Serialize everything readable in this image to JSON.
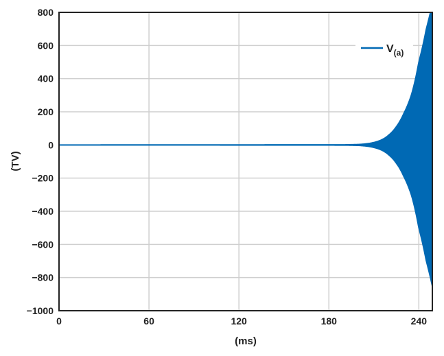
{
  "chart_data": {
    "type": "line",
    "title": "",
    "xlabel": "(ms)",
    "ylabel": "(TV)",
    "xlim": [
      0,
      249
    ],
    "ylim": [
      -1000,
      800
    ],
    "xticks": [
      0,
      60,
      120,
      180,
      240
    ],
    "yticks": [
      800,
      600,
      400,
      200,
      0,
      -200,
      -400,
      -600,
      -800,
      -1000
    ],
    "xtick_labels": [
      "0",
      "60",
      "120",
      "180",
      "240"
    ],
    "ytick_labels": [
      "800",
      "600",
      "400",
      "200",
      "0",
      "−200",
      "−400",
      "−600",
      "−800",
      "−1000"
    ],
    "grid": true,
    "legend_placement": "top-right",
    "series": [
      {
        "name": "V(a)",
        "legend_main": "V",
        "legend_sub": "(a)",
        "color": "#0069b4",
        "style": "oscillation with exponentially growing envelope",
        "envelope": [
          [
            0,
            0
          ],
          [
            190,
            1
          ],
          [
            200,
            3
          ],
          [
            210,
            15
          ],
          [
            220,
            60
          ],
          [
            225,
            110
          ],
          [
            230,
            190
          ],
          [
            235,
            300
          ],
          [
            240,
            500
          ],
          [
            245,
            700
          ],
          [
            249,
            850
          ]
        ]
      }
    ]
  }
}
